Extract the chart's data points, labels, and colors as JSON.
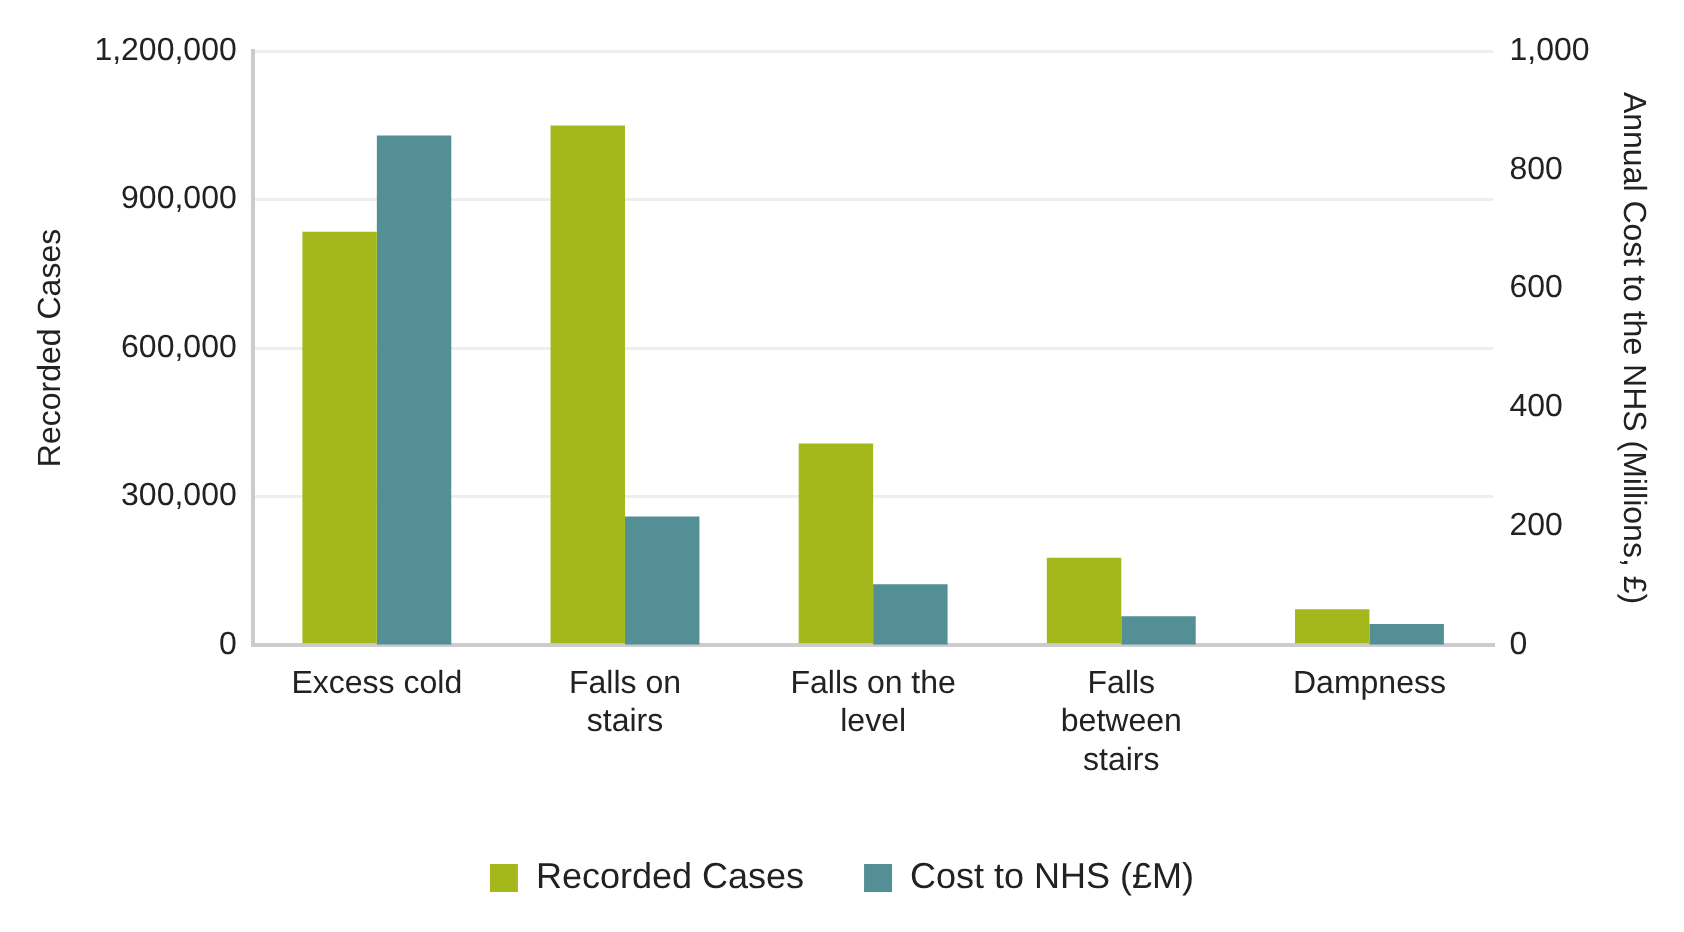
{
  "chart_data": {
    "type": "bar",
    "ylabel": "Recorded Cases",
    "y2label": "Annual Cost to the NHS (Millions, £)",
    "categories": [
      "Excess cold",
      "Falls on stairs",
      "Falls on the level",
      "Falls between stairs",
      "Dampness"
    ],
    "series": [
      {
        "name": "Recorded Cases",
        "color": "#a5b81b",
        "values": [
          835000,
          1050000,
          407000,
          176000,
          72000
        ]
      },
      {
        "name": "Cost to NHS (£M)",
        "color": "#558f96",
        "axis": "y2",
        "values": [
          858,
          216,
          102,
          48,
          35
        ]
      }
    ],
    "ylim": [
      0,
      1200000
    ],
    "yticks": [
      {
        "value": 0,
        "label": "0"
      },
      {
        "value": 300000,
        "label": "300,000"
      },
      {
        "value": 600000,
        "label": "600,000"
      },
      {
        "value": 900000,
        "label": "900,000"
      },
      {
        "value": 1200000,
        "label": "1,200,000"
      }
    ],
    "y2lim": [
      0,
      1000
    ],
    "y2ticks": [
      0,
      200,
      400,
      600,
      800,
      {
        "value": 1000,
        "label": "1,000"
      }
    ],
    "grid": "y",
    "legend": "bottom"
  }
}
